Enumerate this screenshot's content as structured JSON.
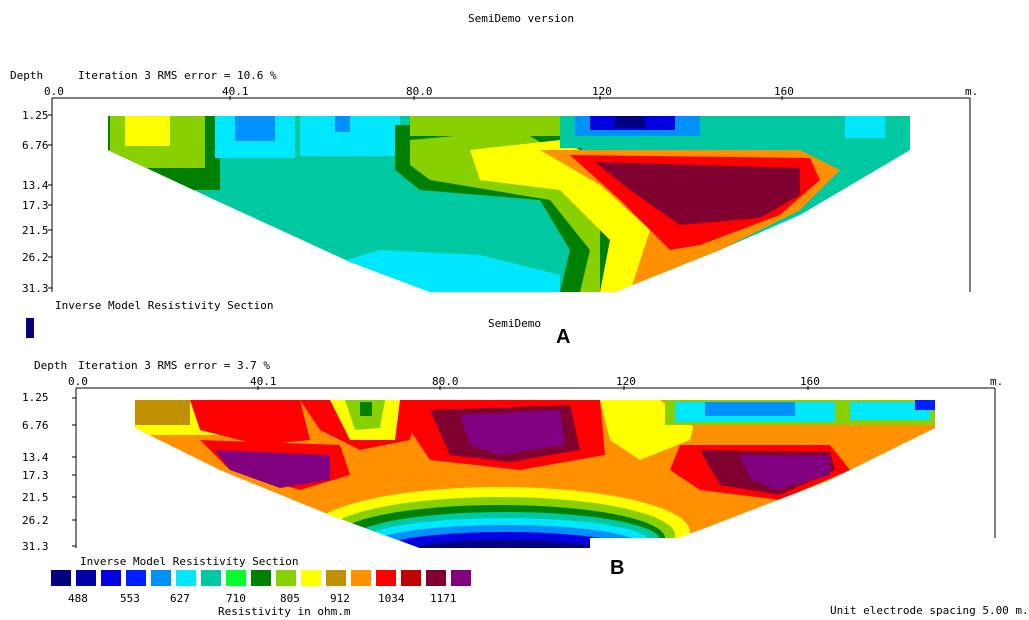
{
  "header": {
    "title": "SemiDemo version"
  },
  "chart_data": [
    {
      "type": "heatmap",
      "panel": "A",
      "depth_label": "Depth",
      "iteration_text": "Iteration 3 RMS error = 10.6 %",
      "x_ticks": [
        "0.0",
        "40.1",
        "80.0",
        "120",
        "160"
      ],
      "x_unit": "m.",
      "y_ticks": [
        "1.25",
        "6.76",
        "13.4",
        "17.3",
        "21.5",
        "26.2",
        "31.3"
      ],
      "caption": "Inverse Model Resistivity Section",
      "note": "SemiDemo"
    },
    {
      "type": "heatmap",
      "panel": "B",
      "depth_label": "Depth",
      "iteration_text": "Iteration 3 RMS error = 3.7 %",
      "x_ticks": [
        "0.0",
        "40.1",
        "80.0",
        "120",
        "160"
      ],
      "x_unit": "m.",
      "y_ticks": [
        "1.25",
        "6.76",
        "13.4",
        "17.3",
        "21.5",
        "26.2",
        "31.3"
      ],
      "caption": "Inverse Model Resistivity Section"
    }
  ],
  "legend": {
    "colors": [
      "#000080",
      "#0000a8",
      "#0000e0",
      "#0020ff",
      "#0090ff",
      "#00e8ff",
      "#00c8a0",
      "#00ff30",
      "#008000",
      "#88d000",
      "#ffff00",
      "#c09000",
      "#ff9000",
      "#ff0000",
      "#c00000",
      "#800030",
      "#800080"
    ],
    "values": [
      "488",
      "553",
      "627",
      "710",
      "805",
      "912",
      "1034",
      "1171"
    ],
    "unit_label": "Resistivity in ohm.m"
  },
  "footer": {
    "spacing": "Unit electrode spacing 5.00 m."
  },
  "labels": {
    "a": "A",
    "b": "B"
  }
}
